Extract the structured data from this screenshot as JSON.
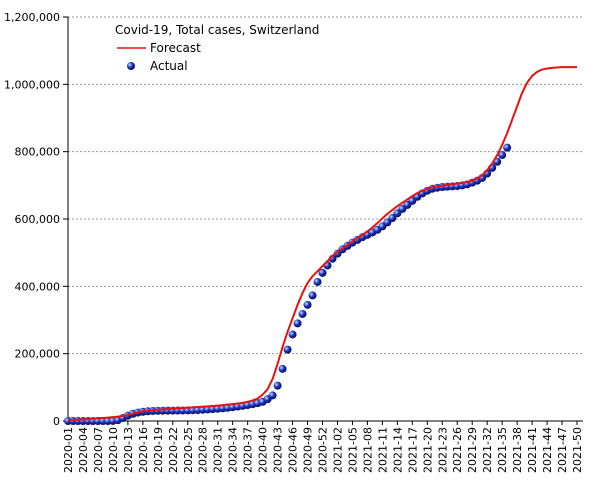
{
  "chart_data": {
    "type": "line",
    "title": "Covid-19, Total cases, Switzerland",
    "categories": [
      "2020-01",
      null,
      null,
      "2020-04",
      null,
      null,
      "2020-07",
      null,
      null,
      "2020-10",
      null,
      null,
      "2020-13",
      null,
      null,
      "2020-16",
      null,
      null,
      "2020-19",
      null,
      null,
      "2020-22",
      null,
      null,
      "2020-25",
      null,
      null,
      "2020-28",
      null,
      null,
      "2020-31",
      null,
      null,
      "2020-34",
      null,
      null,
      "2020-37",
      null,
      null,
      "2020-40",
      null,
      null,
      "2020-43",
      null,
      null,
      "2020-46",
      null,
      null,
      "2020-49",
      null,
      null,
      "2020-52",
      null,
      null,
      "2021-02",
      null,
      null,
      "2021-05",
      null,
      null,
      "2021-08",
      null,
      null,
      "2021-11",
      null,
      null,
      "2021-14",
      null,
      null,
      "2021-17",
      null,
      null,
      "2021-20",
      null,
      null,
      "2021-23",
      null,
      null,
      "2021-26",
      null,
      null,
      "2021-29",
      null,
      null,
      "2021-32",
      null,
      null,
      "2021-35",
      null,
      null,
      "2021-38",
      null,
      null,
      "2021-41",
      null,
      null,
      "2021-44",
      null,
      null,
      "2021-47",
      null,
      null,
      "2021-50"
    ],
    "series": [
      {
        "name": "Forecast",
        "color": "#e8120c",
        "style": "line",
        "values": [
          2000,
          3000,
          4000,
          5000,
          6000,
          7000,
          8000,
          9000,
          10000,
          11500,
          13000,
          15000,
          18000,
          22000,
          26000,
          29000,
          31000,
          32500,
          33500,
          34500,
          35500,
          36500,
          37500,
          38500,
          39500,
          40500,
          41500,
          42500,
          43500,
          44500,
          45500,
          47000,
          48500,
          50000,
          52000,
          54000,
          57000,
          61000,
          67000,
          78000,
          95000,
          125000,
          170000,
          220000,
          265000,
          305000,
          345000,
          380000,
          410000,
          430000,
          445000,
          460000,
          475000,
          490000,
          502000,
          513000,
          523000,
          533000,
          543000,
          553000,
          563000,
          575000,
          588000,
          602000,
          615000,
          627000,
          638000,
          648000,
          658000,
          668000,
          677000,
          684000,
          690000,
          694000,
          697000,
          699000,
          701000,
          703000,
          705000,
          707000,
          710000,
          714000,
          720000,
          730000,
          745000,
          765000,
          790000,
          820000,
          855000,
          895000,
          935000,
          975000,
          1005000,
          1025000,
          1037000,
          1044000,
          1047000,
          1049000,
          1050000,
          1051000,
          1051000,
          1051000,
          1051000
        ]
      },
      {
        "name": "Actual",
        "color": "#1a2fc0",
        "style": "dots",
        "values": [
          0,
          0,
          0,
          0,
          0,
          0,
          0,
          0,
          0,
          500,
          2500,
          9000,
          16000,
          21500,
          25000,
          27500,
          29000,
          29800,
          30200,
          30500,
          30700,
          30900,
          31100,
          31300,
          31600,
          32000,
          32700,
          33600,
          34500,
          35500,
          36500,
          37800,
          39300,
          41000,
          43000,
          45000,
          47500,
          50000,
          53000,
          57000,
          65000,
          76000,
          105000,
          155000,
          212000,
          257000,
          290000,
          318000,
          345000,
          373000,
          413000,
          440000,
          462000,
          482000,
          497000,
          510000,
          520000,
          530000,
          538000,
          546000,
          553000,
          560000,
          568000,
          578000,
          590000,
          603000,
          617000,
          630000,
          642000,
          654000,
          666000,
          676000,
          684000,
          690000,
          693000,
          695000,
          696000,
          697000,
          698000,
          700000,
          703000,
          708000,
          714000,
          722000,
          735000,
          752000,
          770000,
          790000,
          812000,
          null,
          null,
          null,
          null,
          null,
          null,
          null,
          null,
          null,
          null,
          null,
          null,
          null,
          null
        ]
      }
    ],
    "ylim": [
      0,
      1200000
    ],
    "yticks": [
      0,
      {
        "value": 200000,
        "label": "200,000"
      },
      {
        "value": 400000,
        "label": "400,000"
      },
      {
        "value": 600000,
        "label": "600,000"
      },
      {
        "value": 800000,
        "label": "800,000"
      },
      {
        "value": 1000000,
        "label": "1,000,000"
      },
      {
        "value": 1200000,
        "label": "1,200,000"
      }
    ],
    "grid": true
  }
}
